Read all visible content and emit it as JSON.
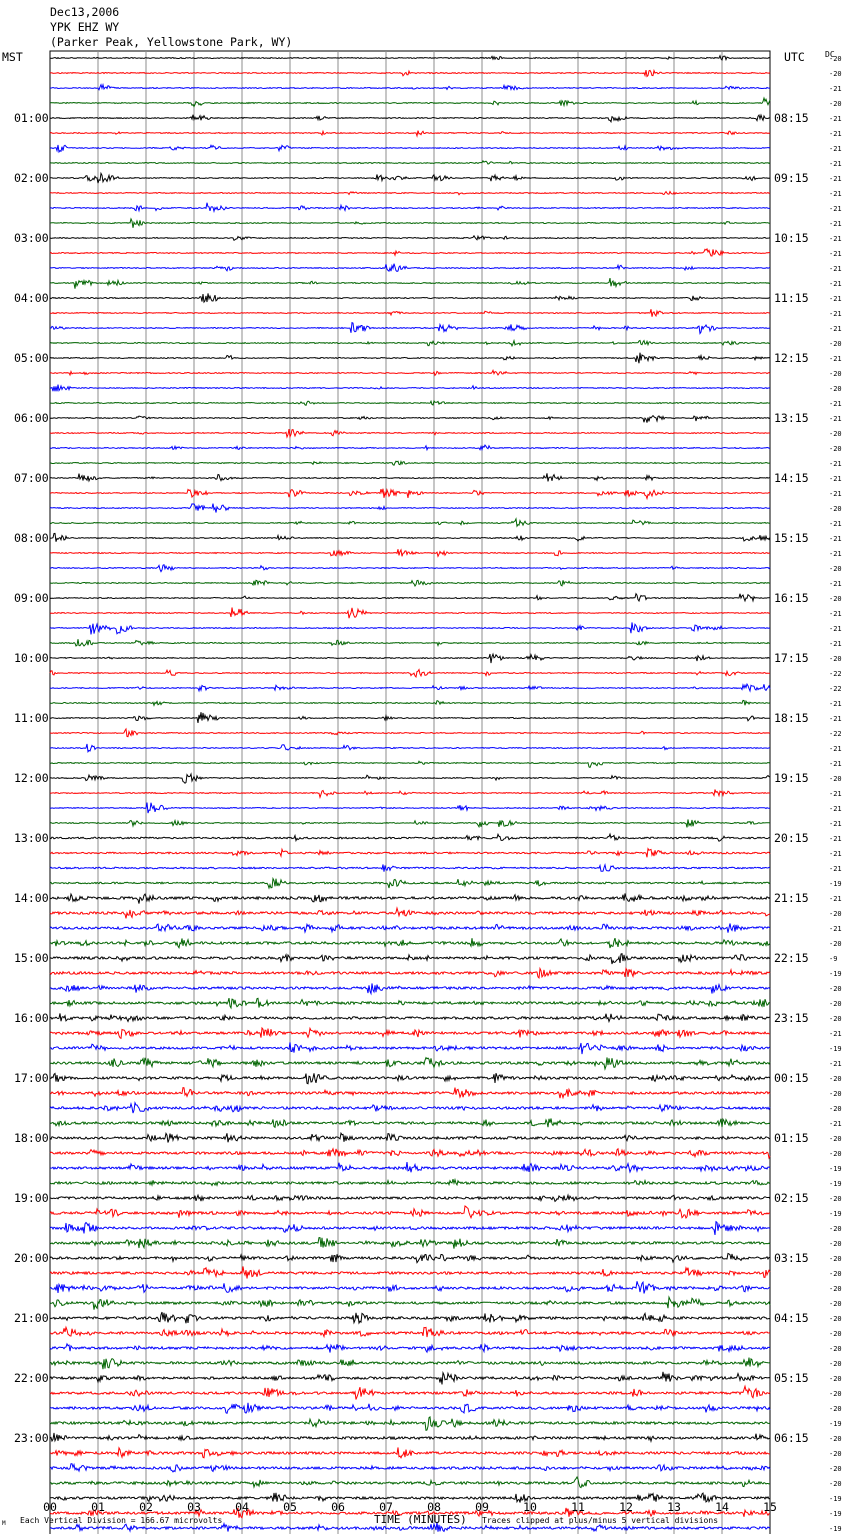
{
  "header": {
    "date": "Dec13,2006",
    "station": "YPK EHZ WY",
    "location": "(Parker Peak, Yellowstone Park, WY)"
  },
  "labels": {
    "left_tz": "MST",
    "right_tz": "UTC",
    "dc": "DC",
    "xlabel": "TIME (MINUTES)",
    "footer_left": "Each Vertical Division =  166.67 microvolts",
    "footer_right": "Traces clipped at plus/minus 5 vertical divisions",
    "corner_mark": "M"
  },
  "chart_data": {
    "type": "line",
    "title": "YPK EHZ WY",
    "xlabel": "TIME (MINUTES)",
    "x_ticks": [
      "00",
      "01",
      "02",
      "03",
      "04",
      "05",
      "06",
      "07",
      "08",
      "09",
      "10",
      "11",
      "12",
      "13",
      "14",
      "15"
    ],
    "xlim": [
      0,
      15
    ],
    "grid": true,
    "trace_colors": [
      "#000000",
      "#ff0000",
      "#0000ff",
      "#006400"
    ],
    "left_hour_labels": [
      "01:00",
      "02:00",
      "03:00",
      "04:00",
      "05:00",
      "06:00",
      "07:00",
      "08:00",
      "09:00",
      "10:00",
      "11:00",
      "12:00",
      "13:00",
      "14:00",
      "15:00",
      "16:00",
      "17:00",
      "18:00",
      "19:00",
      "20:00",
      "21:00",
      "22:00",
      "23:00"
    ],
    "right_hour_labels": [
      "08:15",
      "09:15",
      "10:15",
      "11:15",
      "12:15",
      "13:15",
      "14:15",
      "15:15",
      "16:15",
      "17:15",
      "18:15",
      "19:15",
      "20:15",
      "21:15",
      "22:15",
      "23:15",
      "00:15",
      "01:15",
      "02:15",
      "03:15",
      "04:15",
      "05:15",
      "06:15"
    ],
    "dc_offsets": [
      "20",
      "20",
      "21",
      "20",
      "21",
      "21",
      "21",
      "21",
      "21",
      "21",
      "21",
      "21",
      "21",
      "21",
      "21",
      "21",
      "21",
      "21",
      "21",
      "20",
      "21",
      "20",
      "20",
      "21",
      "21",
      "20",
      "20",
      "21",
      "21",
      "21",
      "20",
      "21",
      "21",
      "21",
      "20",
      "21",
      "20",
      "21",
      "21",
      "21",
      "20",
      "22",
      "22",
      "21",
      "21",
      "22",
      "21",
      "21",
      "20",
      "21",
      "21",
      "21",
      "21",
      "21",
      "21",
      "19",
      "21",
      "20",
      "21",
      "20",
      "9",
      "19",
      "20",
      "20",
      "20",
      "21",
      "19",
      "21",
      "20",
      "20",
      "20",
      "21",
      "20",
      "20",
      "19",
      "19",
      "20",
      "19",
      "20",
      "20",
      "20",
      "20",
      "20",
      "20",
      "20",
      "20",
      "20",
      "20",
      "20",
      "20",
      "20",
      "19",
      "20",
      "20",
      "20",
      "20",
      "19",
      "19",
      "19",
      "20",
      "19",
      "19"
    ],
    "scale_microvolts_per_division": 166.67,
    "clip_divisions": 5
  }
}
